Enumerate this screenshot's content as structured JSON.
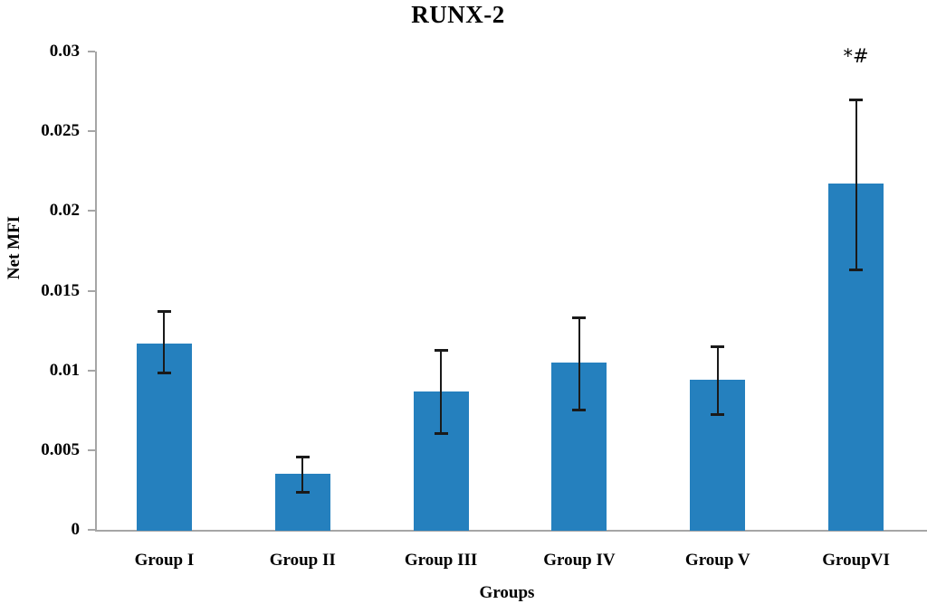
{
  "chart_data": {
    "type": "bar",
    "title": "RUNX-2",
    "xlabel": "Groups",
    "ylabel": "Net MFI",
    "categories": [
      "Group I",
      "Group II",
      "Group III",
      "Group IV",
      "Group V",
      "GroupVI"
    ],
    "values": [
      0.0117,
      0.0035,
      0.0087,
      0.0105,
      0.0094,
      0.0217
    ],
    "error_bars": [
      {
        "upper": 0.0137,
        "lower": 0.0098
      },
      {
        "upper": 0.0046,
        "lower": 0.0023
      },
      {
        "upper": 0.0113,
        "lower": 0.006
      },
      {
        "upper": 0.0133,
        "lower": 0.0075
      },
      {
        "upper": 0.0115,
        "lower": 0.0072
      },
      {
        "upper": 0.027,
        "lower": 0.0163
      }
    ],
    "ylim": [
      0,
      0.03
    ],
    "yticks": [
      0,
      0.005,
      0.01,
      0.015,
      0.02,
      0.025,
      0.03
    ],
    "ytick_labels": [
      "0",
      "0.005",
      "0.01",
      "0.015",
      "0.02",
      "0.025",
      "0.03"
    ],
    "grid": "off",
    "legend": "none",
    "annotations": [
      {
        "text": "*#",
        "category": "GroupVI",
        "y": 0.0296
      }
    ],
    "colors": {
      "bar_fill": "#2580BE",
      "axis_line": "#A6A6A6",
      "error_bar": "#1A1A1A",
      "text": "#000000"
    }
  }
}
